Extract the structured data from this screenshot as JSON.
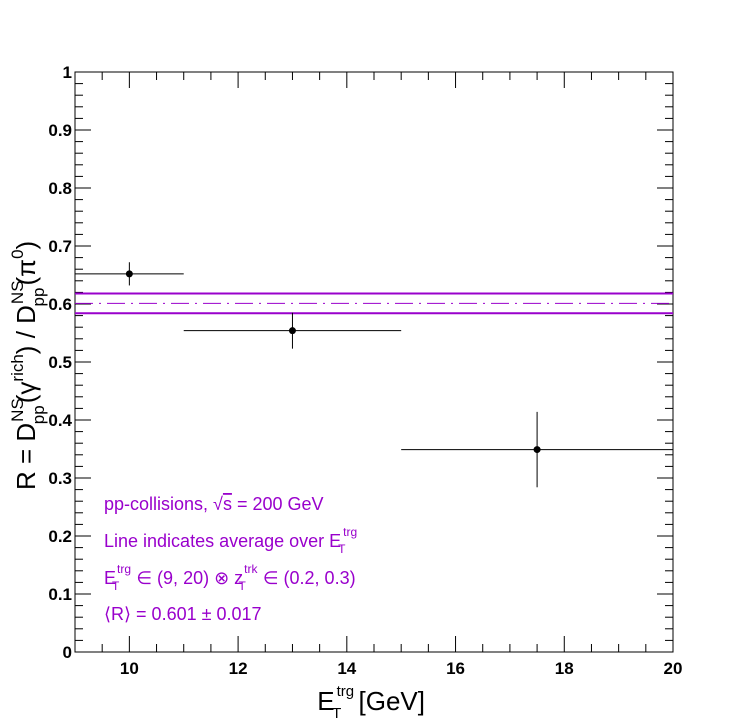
{
  "chart_data": {
    "type": "scatter",
    "xlim": [
      9,
      20
    ],
    "ylim": [
      0,
      1
    ],
    "xticks": [
      10,
      12,
      14,
      16,
      18,
      20
    ],
    "xtick_labels": [
      "10",
      "12",
      "14",
      "16",
      "18",
      "20"
    ],
    "yticks": [
      0,
      0.1,
      0.2,
      0.3,
      0.4,
      0.5,
      0.6,
      0.7,
      0.8,
      0.9,
      1
    ],
    "ytick_labels": [
      "0",
      "0.1",
      "0.2",
      "0.3",
      "0.4",
      "0.5",
      "0.6",
      "0.7",
      "0.8",
      "0.9",
      "1"
    ],
    "grid": false,
    "xlabel": {
      "main": "E",
      "sub": "T",
      "sup": "trg",
      "tail": " [GeV]"
    },
    "ylabel": {
      "p1": "R = D",
      "p1_sup": "NS",
      "p1_sub": "pp",
      "p2": "(γ",
      "p2_sup": "rich",
      "p3": ") / D",
      "p3_sup": "NS",
      "p3_sub": "pp",
      "p4": "(π",
      "p4_sup": "0",
      "p5": ")"
    },
    "points": [
      {
        "x": 10.0,
        "y": 0.652,
        "xerr": [
          1.0,
          1.0
        ],
        "yerr": [
          0.02,
          0.02
        ]
      },
      {
        "x": 13.0,
        "y": 0.554,
        "xerr": [
          2.0,
          2.0
        ],
        "yerr": [
          0.031,
          0.031
        ]
      },
      {
        "x": 17.5,
        "y": 0.349,
        "xerr": [
          2.5,
          2.5
        ],
        "yerr": [
          0.065,
          0.065
        ]
      }
    ],
    "average": {
      "value": 0.601,
      "band": [
        0.584,
        0.618
      ]
    },
    "colors": {
      "points": "#000000",
      "average": "#9900cc",
      "annotation": "#9900cc",
      "axis": "#000000"
    },
    "annotations": {
      "line1": {
        "a": "pp-collisions, ",
        "sqrt": "√",
        "s": "s",
        "b": " = 200 GeV"
      },
      "line2": {
        "a": "Line indicates average over E",
        "sup": "trg",
        "sub": "T"
      },
      "line3": {
        "a": "E",
        "a_sup": "trg",
        "a_sub": "T",
        "b": " ∈ (9, 20) ⊗ z",
        "b_sup": "trk",
        "b_sub": "T",
        "c": " ∈ (0.2, 0.3)"
      },
      "line4": {
        "a": "⟨R⟩ = 0.601 ± 0.017"
      }
    }
  }
}
